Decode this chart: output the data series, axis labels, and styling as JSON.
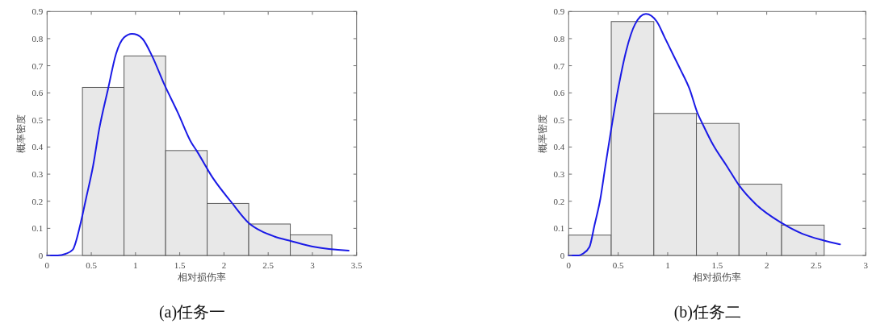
{
  "chart_data": [
    {
      "type": "histogram",
      "title": "(a)任务一",
      "xlabel": "相对损伤率",
      "ylabel": "概率密度",
      "bins": [
        0.4,
        0.87,
        1.34,
        1.81,
        2.28,
        2.75,
        3.22
      ],
      "series": [
        {
          "color": "#e8e8e8",
          "values": [
            0.62,
            0.736,
            0.387,
            0.192,
            0.116,
            0.076
          ]
        },
        {
          "type": "line",
          "color": "#1a1ae6",
          "x": [
            0,
            0.12,
            0.21,
            0.29,
            0.38,
            0.44,
            0.52,
            0.59,
            0.69,
            0.78,
            0.87,
            0.96,
            1.02,
            1.08,
            1.19,
            1.32,
            1.48,
            1.63,
            1.69,
            1.87,
            2.09,
            2.28,
            2.42,
            2.57,
            2.76,
            3.03,
            3.41
          ],
          "values": [
            0,
            0,
            0.006,
            0.021,
            0.12,
            0.209,
            0.33,
            0.467,
            0.615,
            0.744,
            0.804,
            0.818,
            0.814,
            0.799,
            0.734,
            0.635,
            0.526,
            0.417,
            0.387,
            0.288,
            0.194,
            0.12,
            0.09,
            0.07,
            0.053,
            0.031,
            0.018
          ]
        }
      ],
      "xlim": [
        0,
        3.5
      ],
      "xticks": [
        0,
        0.5,
        1,
        1.5,
        2,
        2.5,
        3,
        3.5
      ],
      "ylim": [
        0,
        0.9
      ],
      "yticks": [
        0,
        0.1,
        0.2,
        0.3,
        0.4,
        0.5,
        0.6,
        0.7,
        0.8,
        0.9
      ],
      "grid": false
    },
    {
      "type": "histogram",
      "title": "(b)任务二",
      "xlabel": "相对损伤率",
      "ylabel": "概率密度",
      "bins": [
        0,
        0.43,
        0.86,
        1.29,
        1.72,
        2.15,
        2.58
      ],
      "series": [
        {
          "color": "#e8e8e8",
          "values": [
            0.075,
            0.863,
            0.524,
            0.487,
            0.263,
            0.112
          ]
        },
        {
          "type": "line",
          "color": "#1a1ae6",
          "x": [
            0,
            0.1,
            0.14,
            0.21,
            0.26,
            0.32,
            0.37,
            0.43,
            0.5,
            0.58,
            0.67,
            0.78,
            0.89,
            0.97,
            1.05,
            1.13,
            1.22,
            1.3,
            1.35,
            1.46,
            1.6,
            1.72,
            1.89,
            2.15,
            2.36,
            2.57,
            2.74
          ],
          "values": [
            0,
            0,
            0.006,
            0.031,
            0.11,
            0.209,
            0.328,
            0.467,
            0.615,
            0.754,
            0.853,
            0.891,
            0.863,
            0.804,
            0.744,
            0.685,
            0.615,
            0.526,
            0.487,
            0.407,
            0.328,
            0.259,
            0.189,
            0.12,
            0.08,
            0.056,
            0.041
          ]
        }
      ],
      "xlim": [
        0,
        3
      ],
      "xticks": [
        0,
        0.5,
        1,
        1.5,
        2,
        2.5,
        3
      ],
      "ylim": [
        0,
        0.9
      ],
      "yticks": [
        0,
        0.1,
        0.2,
        0.3,
        0.4,
        0.5,
        0.6,
        0.7,
        0.8,
        0.9
      ],
      "grid": false
    }
  ]
}
